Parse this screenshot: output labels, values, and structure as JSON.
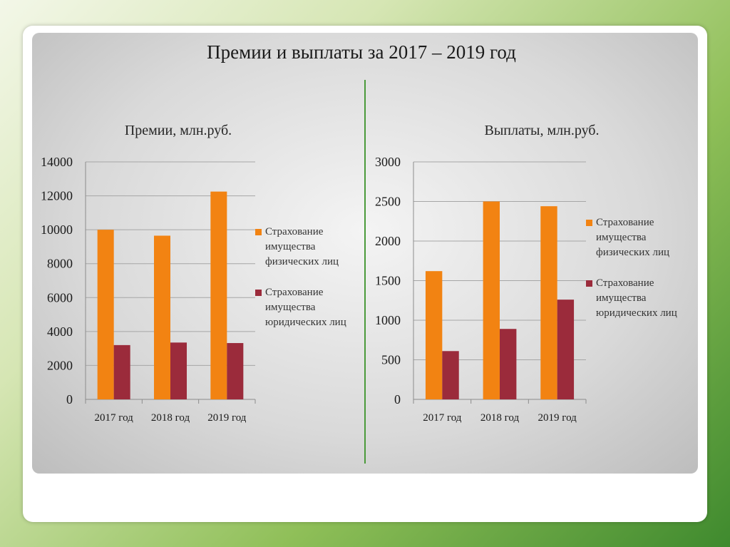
{
  "title": "Премии и выплаты за 2017 – 2019 год",
  "colors": {
    "individuals": "#f28312",
    "legal": "#9b2b3b",
    "divider": "#4a9a3a"
  },
  "legend": {
    "individuals": "Страхование имущества физических лиц",
    "legal": "Страхование имущества юридических лиц"
  },
  "chart_data": [
    {
      "type": "bar",
      "title": "Премии, млн.руб.",
      "categories": [
        "2017 год",
        "2018 год",
        "2019 год"
      ],
      "series": [
        {
          "name": "Страхование имущества физических лиц",
          "values": [
            10000,
            9650,
            12250
          ]
        },
        {
          "name": "Страхование имущества юридических лиц",
          "values": [
            3200,
            3350,
            3320
          ]
        }
      ],
      "ylim": [
        0,
        14000
      ],
      "yticks": [
        0,
        2000,
        4000,
        6000,
        8000,
        10000,
        12000,
        14000
      ],
      "grid": true,
      "legend_position": "right"
    },
    {
      "type": "bar",
      "title": "Выплаты, млн.руб.",
      "categories": [
        "2017 год",
        "2018 год",
        "2019 год"
      ],
      "series": [
        {
          "name": "Страхование имущества физических лиц",
          "values": [
            1620,
            2500,
            2440
          ]
        },
        {
          "name": "Страхование имущества юридических лиц",
          "values": [
            610,
            890,
            1260
          ]
        }
      ],
      "ylim": [
        0,
        3000
      ],
      "yticks": [
        0,
        500,
        1000,
        1500,
        2000,
        2500,
        3000
      ],
      "grid": true,
      "legend_position": "right"
    }
  ]
}
